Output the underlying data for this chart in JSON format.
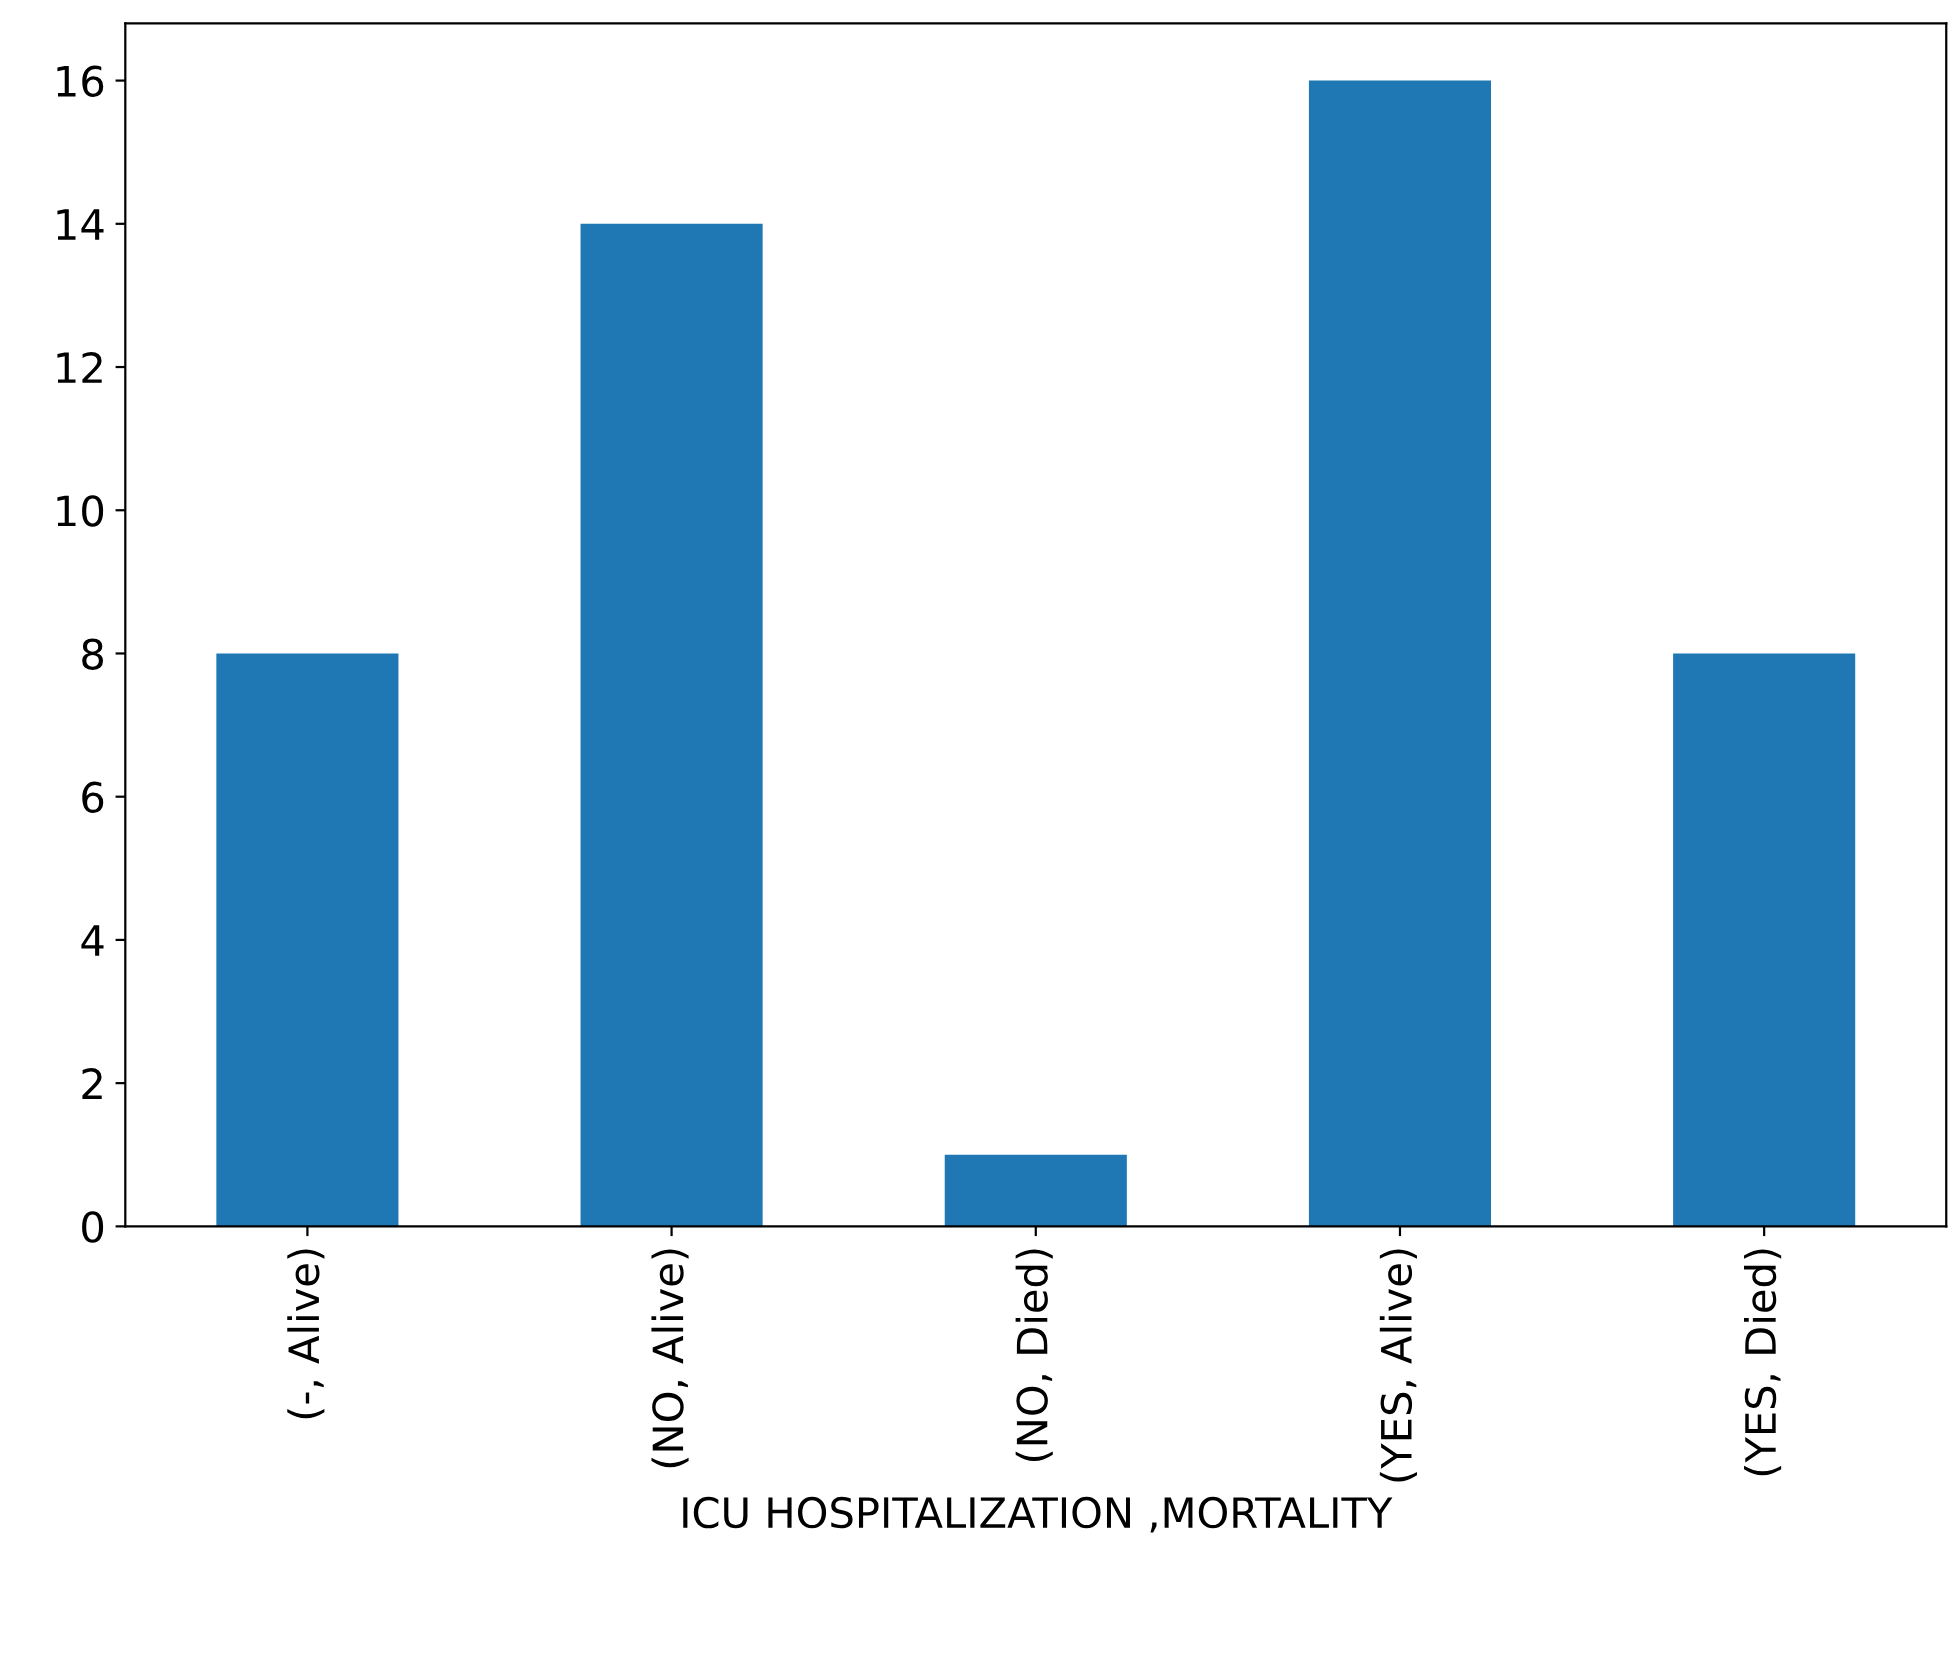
{
  "chart_data": {
    "type": "bar",
    "xlabel": "ICU HOSPITALIZATION ,MORTALITY",
    "categories": [
      "(-, Alive)",
      "(NO, Alive)",
      "(NO, Died)",
      "(YES, Alive)",
      "(YES, Died)"
    ],
    "values": [
      8,
      14,
      1,
      16,
      8
    ],
    "color": "#1f77b4",
    "ylim": [
      0,
      16.8
    ],
    "yticks": [
      0,
      2,
      4,
      6,
      8,
      10,
      12,
      14,
      16
    ],
    "grid": false,
    "legend": false
  }
}
